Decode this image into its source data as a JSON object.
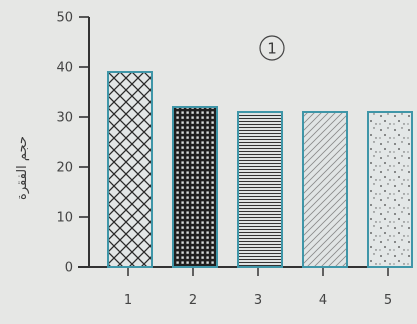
{
  "chart_data": {
    "type": "bar",
    "categories": [
      "1",
      "2",
      "3",
      "4",
      "5"
    ],
    "values": [
      39,
      32,
      31,
      31,
      31
    ],
    "ylim": [
      0,
      50
    ],
    "yticks": [
      "0",
      "10",
      "20",
      "30",
      "40",
      "50"
    ],
    "ylabel": "حجم الفقرة",
    "xlabel": "",
    "annotation": "1",
    "grid": false,
    "patterns": [
      "crosshatch",
      "dense-grid",
      "horizontal-lines",
      "diagonal-lines",
      "dots"
    ],
    "colors": {
      "bar_stroke": "#3f96a8",
      "pattern_ink": "#2a2a2a",
      "axis": "#333333"
    }
  }
}
